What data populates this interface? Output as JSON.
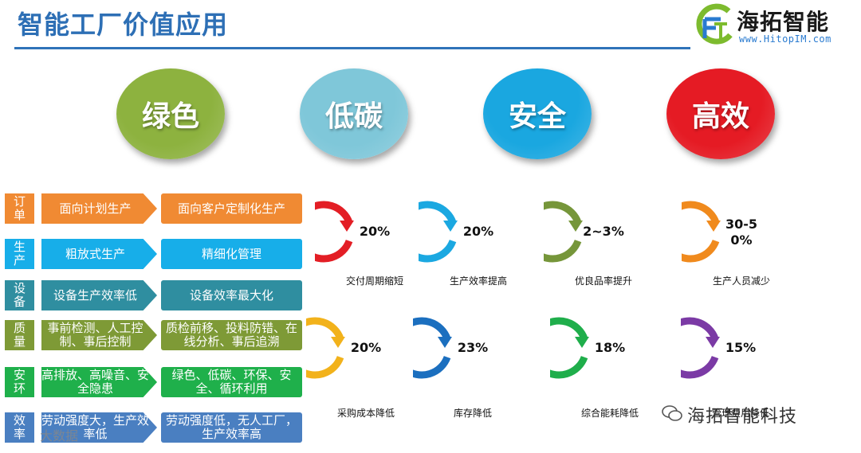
{
  "title": "智能工厂价值应用",
  "logo": {
    "name": "海拓智能",
    "url": "www.HitopIM.com"
  },
  "values": [
    {
      "label": "绿色",
      "color": "#8db23f"
    },
    {
      "label": "低碳",
      "color": "#7fc7d9"
    },
    {
      "label": "安全",
      "color": "#1aa7e0"
    },
    {
      "label": "高效",
      "color": "#e51b24"
    }
  ],
  "transformations": [
    {
      "label": "订单",
      "from": "面向计划生产",
      "to": "面向客户定制化生产",
      "color": "#f08a33"
    },
    {
      "label": "生产",
      "from": "粗放式生产",
      "to": "精细化管理",
      "color": "#17aee9"
    },
    {
      "label": "设备",
      "from": "设备生产效率低",
      "to": "设备效率最大化",
      "color": "#2f8ea0"
    },
    {
      "label": "质量",
      "from": "事前检测、人工控制、事后控制",
      "to": "质检前移、投料防错、在线分析、事后追溯",
      "color": "#7e9a36"
    },
    {
      "label": "安环",
      "from": "高排放、高噪音、安全隐患",
      "to": "绿色、低碳、环保、安全、循环利用",
      "color": "#1fb04b"
    },
    {
      "label": "效率",
      "from": "劳动强度大，生产效率低",
      "to": "劳动强度低，无人工厂，生产效率高",
      "color": "#4a7fc1"
    }
  ],
  "metrics": [
    {
      "value": "20%",
      "caption": "交付周期缩短",
      "color": "#e31e25"
    },
    {
      "value": "20%",
      "caption": "生产效率提高",
      "color": "#1ba8e1"
    },
    {
      "value": "2~3%",
      "caption": "优良品率提升",
      "color": "#76963a"
    },
    {
      "value": "30-50%",
      "caption": "生产人员减少",
      "color": "#f08a1d"
    },
    {
      "value": "20%",
      "caption": "采购成本降低",
      "color": "#f2b21b"
    },
    {
      "value": "23%",
      "caption": "库存降低",
      "color": "#1b6fbf"
    },
    {
      "value": "18%",
      "caption": "综合能耗降低",
      "color": "#1fae4b"
    },
    {
      "value": "15%",
      "caption": "管理费用降低",
      "color": "#7b3aa5"
    }
  ],
  "watermark": "海拓智能科技",
  "watermark_left": "大数据"
}
